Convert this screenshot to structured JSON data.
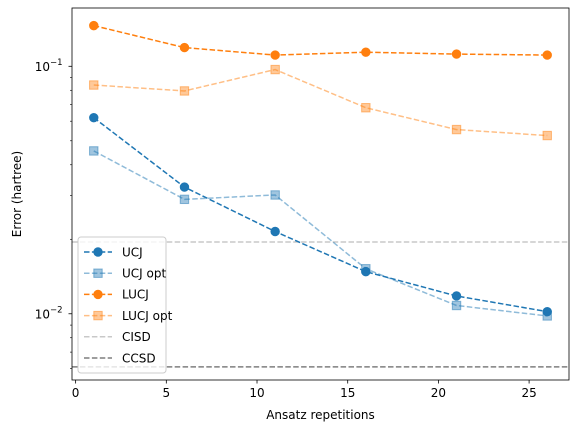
{
  "chart_data": {
    "type": "line",
    "xlabel": "Ansatz repetitions",
    "ylabel": "Error (hartree)",
    "xlim": [
      -0.2,
      27.2
    ],
    "ylim": [
      0.0054,
      0.172
    ],
    "yscale": "log",
    "x_ticks": [
      0,
      5,
      10,
      15,
      20,
      25
    ],
    "y_major_ticks": [
      {
        "value": 0.01,
        "label": "10",
        "exp": "−2"
      },
      {
        "value": 0.1,
        "label": "10",
        "exp": "−1"
      }
    ],
    "grid": false,
    "legend_position": "lower-left",
    "series": [
      {
        "name": "UCJ",
        "color": "#1f77b4",
        "marker": "circle",
        "alpha": 1.0,
        "x": [
          1,
          6,
          11,
          16,
          21,
          26
        ],
        "y": [
          0.062,
          0.0325,
          0.0215,
          0.0148,
          0.0118,
          0.0102
        ]
      },
      {
        "name": "UCJ opt",
        "color": "#1f77b4",
        "marker": "square",
        "alpha": 0.5,
        "x": [
          1,
          6,
          11,
          16,
          21,
          26
        ],
        "y": [
          0.0455,
          0.029,
          0.0302,
          0.0152,
          0.0108,
          0.0098
        ]
      },
      {
        "name": "LUCJ",
        "color": "#ff7f0e",
        "marker": "circle",
        "alpha": 1.0,
        "x": [
          1,
          6,
          11,
          16,
          21,
          26
        ],
        "y": [
          0.146,
          0.119,
          0.111,
          0.114,
          0.112,
          0.111
        ]
      },
      {
        "name": "LUCJ opt",
        "color": "#ff7f0e",
        "marker": "square",
        "alpha": 0.5,
        "x": [
          1,
          6,
          11,
          16,
          21,
          26
        ],
        "y": [
          0.084,
          0.0795,
          0.097,
          0.068,
          0.0555,
          0.0525
        ]
      }
    ],
    "hlines": [
      {
        "name": "CISD",
        "value": 0.0195,
        "color": "#c8c8c8"
      },
      {
        "name": "CCSD",
        "value": 0.0061,
        "color": "#7f7f7f"
      }
    ]
  }
}
